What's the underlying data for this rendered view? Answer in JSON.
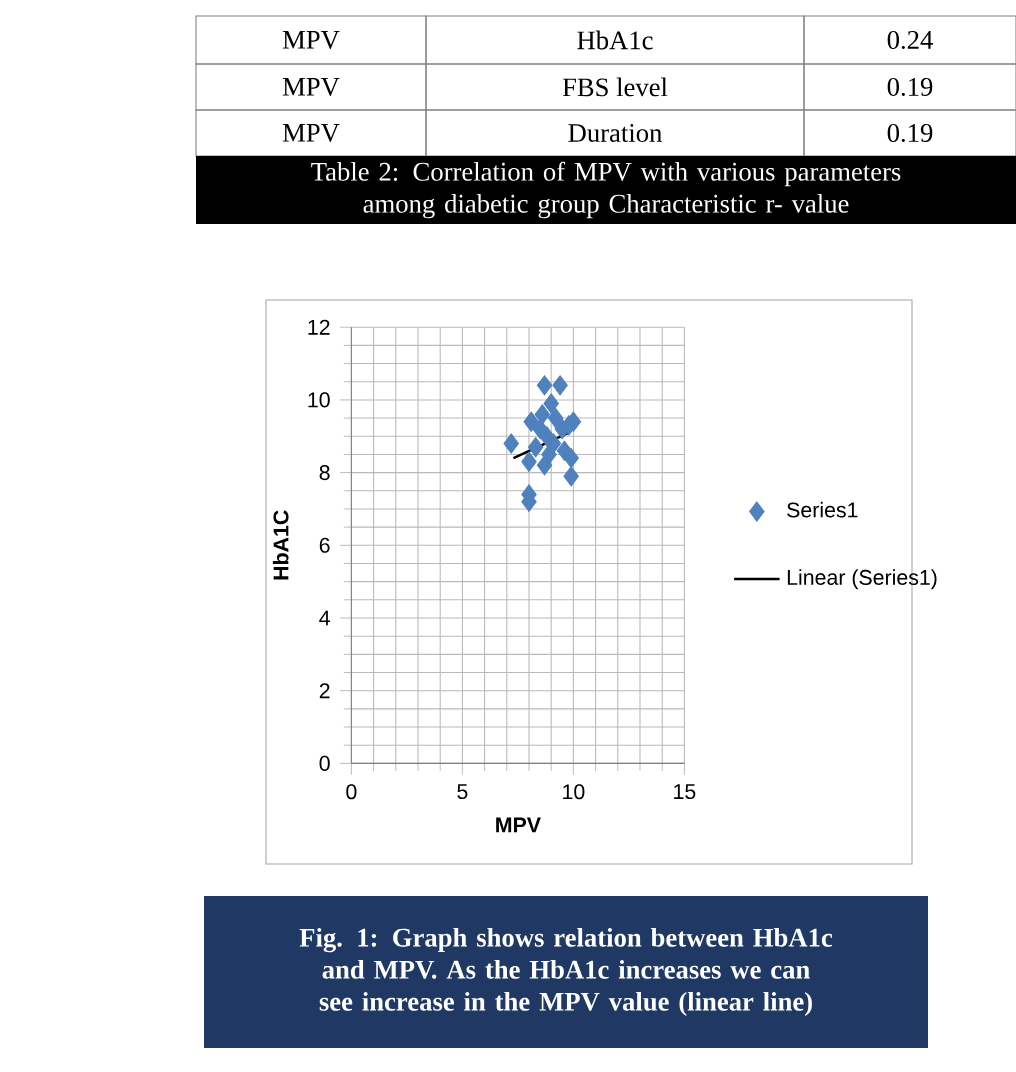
{
  "chart_data": {
    "type": "scatter",
    "xlabel": "MPV",
    "ylabel": "HbA1C",
    "annotations": [
      "MPV",
      "HbA1c",
      "0.24",
      "MPV",
      "FBS level",
      "0.19",
      "MPV",
      "Duration",
      "0.19",
      "Table 2: Correlation of MPV with various parameters among diabetic group Characteristic r- value",
      "Fig. 1: Graph shows relation between HbA1c and MPV. As the HbA1c increases we can see increase in the MPV value (linear line)"
    ],
    "series": [
      {
        "name": "Series1",
        "color": "#4f81bd",
        "marker": "diamond",
        "x": [
          7.2,
          8.0,
          8.0,
          8.0,
          8.1,
          8.3,
          8.6,
          8.7,
          8.8,
          8.9,
          9.0,
          9.1,
          9.4,
          9.5,
          9.6,
          9.8,
          9.9,
          9.9,
          8.5,
          9.2,
          8.7,
          10.0
        ],
        "values": [
          8.8,
          7.4,
          7.2,
          8.3,
          9.4,
          8.7,
          9.6,
          10.4,
          9.0,
          8.5,
          9.9,
          8.8,
          10.4,
          9.2,
          8.6,
          9.3,
          8.4,
          7.9,
          9.2,
          9.5,
          8.2,
          9.4
        ]
      },
      {
        "name": "Linear (Series1)",
        "type": "line",
        "color": "#000000",
        "x": [
          7.3,
          9.8
        ],
        "values": [
          8.4,
          9.1
        ]
      }
    ],
    "xlim": [
      0,
      15
    ],
    "ylim": [
      0,
      12
    ],
    "xticks": [
      0,
      5,
      10,
      15
    ],
    "yticks": [
      0,
      2,
      4,
      6,
      8,
      10,
      12
    ],
    "grid": true,
    "legend": "right"
  }
}
